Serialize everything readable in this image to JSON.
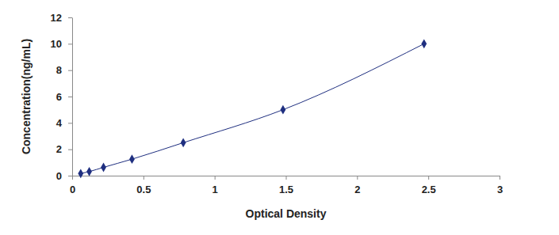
{
  "chart_data": {
    "type": "line",
    "x": [
      0.06,
      0.12,
      0.22,
      0.42,
      0.78,
      1.48,
      2.47
    ],
    "values": [
      0.16,
      0.31,
      0.63,
      1.25,
      2.5,
      5,
      10
    ],
    "x_label": "Optical Density",
    "y_label": "Concentration(ng/mL)",
    "color": "#1f2f80",
    "marker": "diamond",
    "line_style": "solid",
    "xlim": [
      0,
      3
    ],
    "xticks": [
      0,
      0.5,
      1,
      1.5,
      2,
      2.5,
      3
    ],
    "ylim": [
      0,
      12
    ],
    "yticks": [
      0,
      2,
      4,
      6,
      8,
      10,
      12
    ],
    "grid": false
  }
}
